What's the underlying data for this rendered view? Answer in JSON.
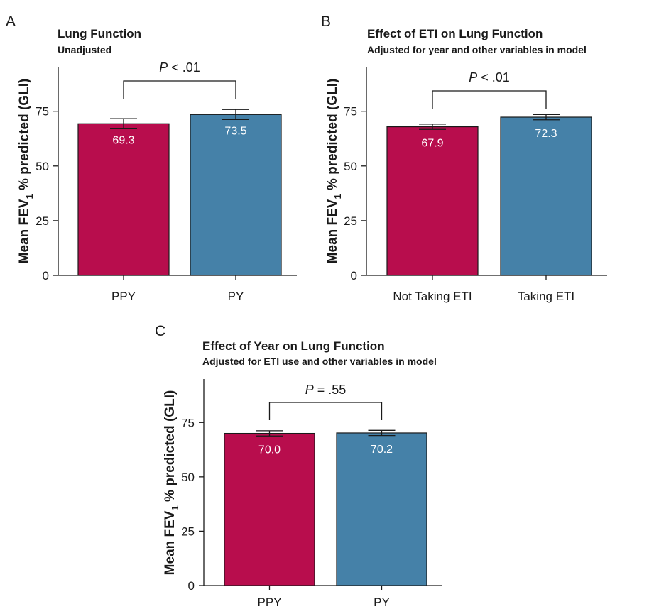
{
  "colors": {
    "ppy": "#b80d4d",
    "py": "#4581a8",
    "ink": "#1a1a1a"
  },
  "chart_data": [
    {
      "type": "bar",
      "panel": "A",
      "title": "Lung Function",
      "subtitle": "Unadjusted",
      "ylabel": "Mean FEV",
      "ylabel_sub": "1",
      "ylabel_rest": " % predicted (GLI)",
      "categories": [
        "PPY",
        "PY"
      ],
      "values": [
        69.3,
        73.5
      ],
      "value_labels": [
        "69.3",
        "73.5"
      ],
      "error_low": [
        67.0,
        71.2
      ],
      "error_high": [
        71.6,
        75.8
      ],
      "ylim": [
        0,
        95
      ],
      "yticks": [
        0,
        25,
        50,
        75
      ],
      "ytick_labels": [
        "0",
        "25",
        "50",
        "75"
      ],
      "significance": {
        "p_italic": "P",
        "p_rest": " < .01"
      }
    },
    {
      "type": "bar",
      "panel": "B",
      "title": "Effect of ETI on Lung Function",
      "subtitle": "Adjusted for year and other variables in model",
      "ylabel": "Mean FEV",
      "ylabel_sub": "1",
      "ylabel_rest": " % predicted (GLI)",
      "categories": [
        "Not Taking ETI",
        "Taking ETI"
      ],
      "values": [
        67.9,
        72.3
      ],
      "value_labels": [
        "67.9",
        "72.3"
      ],
      "error_low": [
        66.7,
        71.1
      ],
      "error_high": [
        69.1,
        73.5
      ],
      "ylim": [
        0,
        95
      ],
      "yticks": [
        0,
        25,
        50,
        75
      ],
      "ytick_labels": [
        "0",
        "25",
        "50",
        "75"
      ],
      "significance": {
        "p_italic": "P",
        "p_rest": " < .01"
      }
    },
    {
      "type": "bar",
      "panel": "C",
      "title": "Effect of Year on Lung Function",
      "subtitle": "Adjusted for ETI use and other variables in model",
      "ylabel": "Mean FEV",
      "ylabel_sub": "1",
      "ylabel_rest": " % predicted (GLI)",
      "categories": [
        "PPY",
        "PY"
      ],
      "values": [
        70.0,
        70.2
      ],
      "value_labels": [
        "70.0",
        "70.2"
      ],
      "error_low": [
        68.8,
        69.0
      ],
      "error_high": [
        71.2,
        71.4
      ],
      "ylim": [
        0,
        95
      ],
      "yticks": [
        0,
        25,
        50,
        75
      ],
      "ytick_labels": [
        "0",
        "25",
        "50",
        "75"
      ],
      "significance": {
        "p_italic": "P",
        "p_rest": " = .55"
      }
    }
  ]
}
